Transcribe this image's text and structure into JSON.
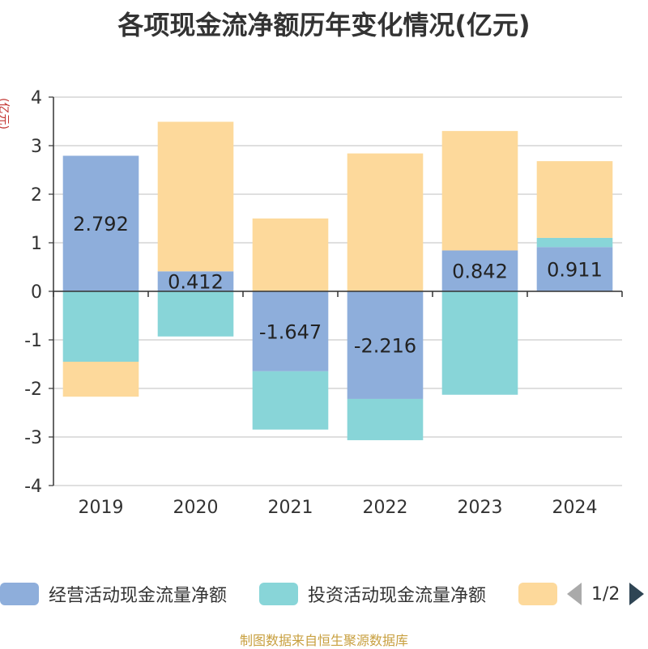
{
  "chart_data": {
    "type": "bar",
    "stacked": true,
    "title": "各项现金流净额历年变化情况(亿元)",
    "ylabel": "(亿元)",
    "ylim": [
      -4,
      4
    ],
    "yticks": [
      4,
      3,
      2,
      1,
      0,
      -1,
      -2,
      -3,
      -4
    ],
    "categories": [
      "2019",
      "2020",
      "2021",
      "2022",
      "2023",
      "2024"
    ],
    "series": [
      {
        "name": "经营活动现金流量净额",
        "color": "#8eaedb",
        "values": [
          2.792,
          0.412,
          -1.647,
          -2.216,
          0.842,
          0.911
        ],
        "show_labels": true
      },
      {
        "name": "投资活动现金流量净额",
        "color": "#88d5d8",
        "values": [
          -1.45,
          -0.93,
          -1.2,
          -0.85,
          -2.13,
          0.19
        ],
        "show_labels": false
      },
      {
        "name": "",
        "color": "#fdd99b",
        "values": [
          -0.72,
          3.08,
          1.5,
          2.84,
          2.46,
          1.58
        ],
        "show_labels": false
      }
    ],
    "grid": true
  },
  "legend": {
    "items": [
      {
        "label": "经营活动现金流量净额",
        "color": "#8eaedb"
      },
      {
        "label": "投资活动现金流量净额",
        "color": "#88d5d8"
      },
      {
        "label": "",
        "color": "#fdd99b"
      }
    ],
    "page_text": "1/2"
  },
  "source": "制图数据来自恒生聚源数据库"
}
